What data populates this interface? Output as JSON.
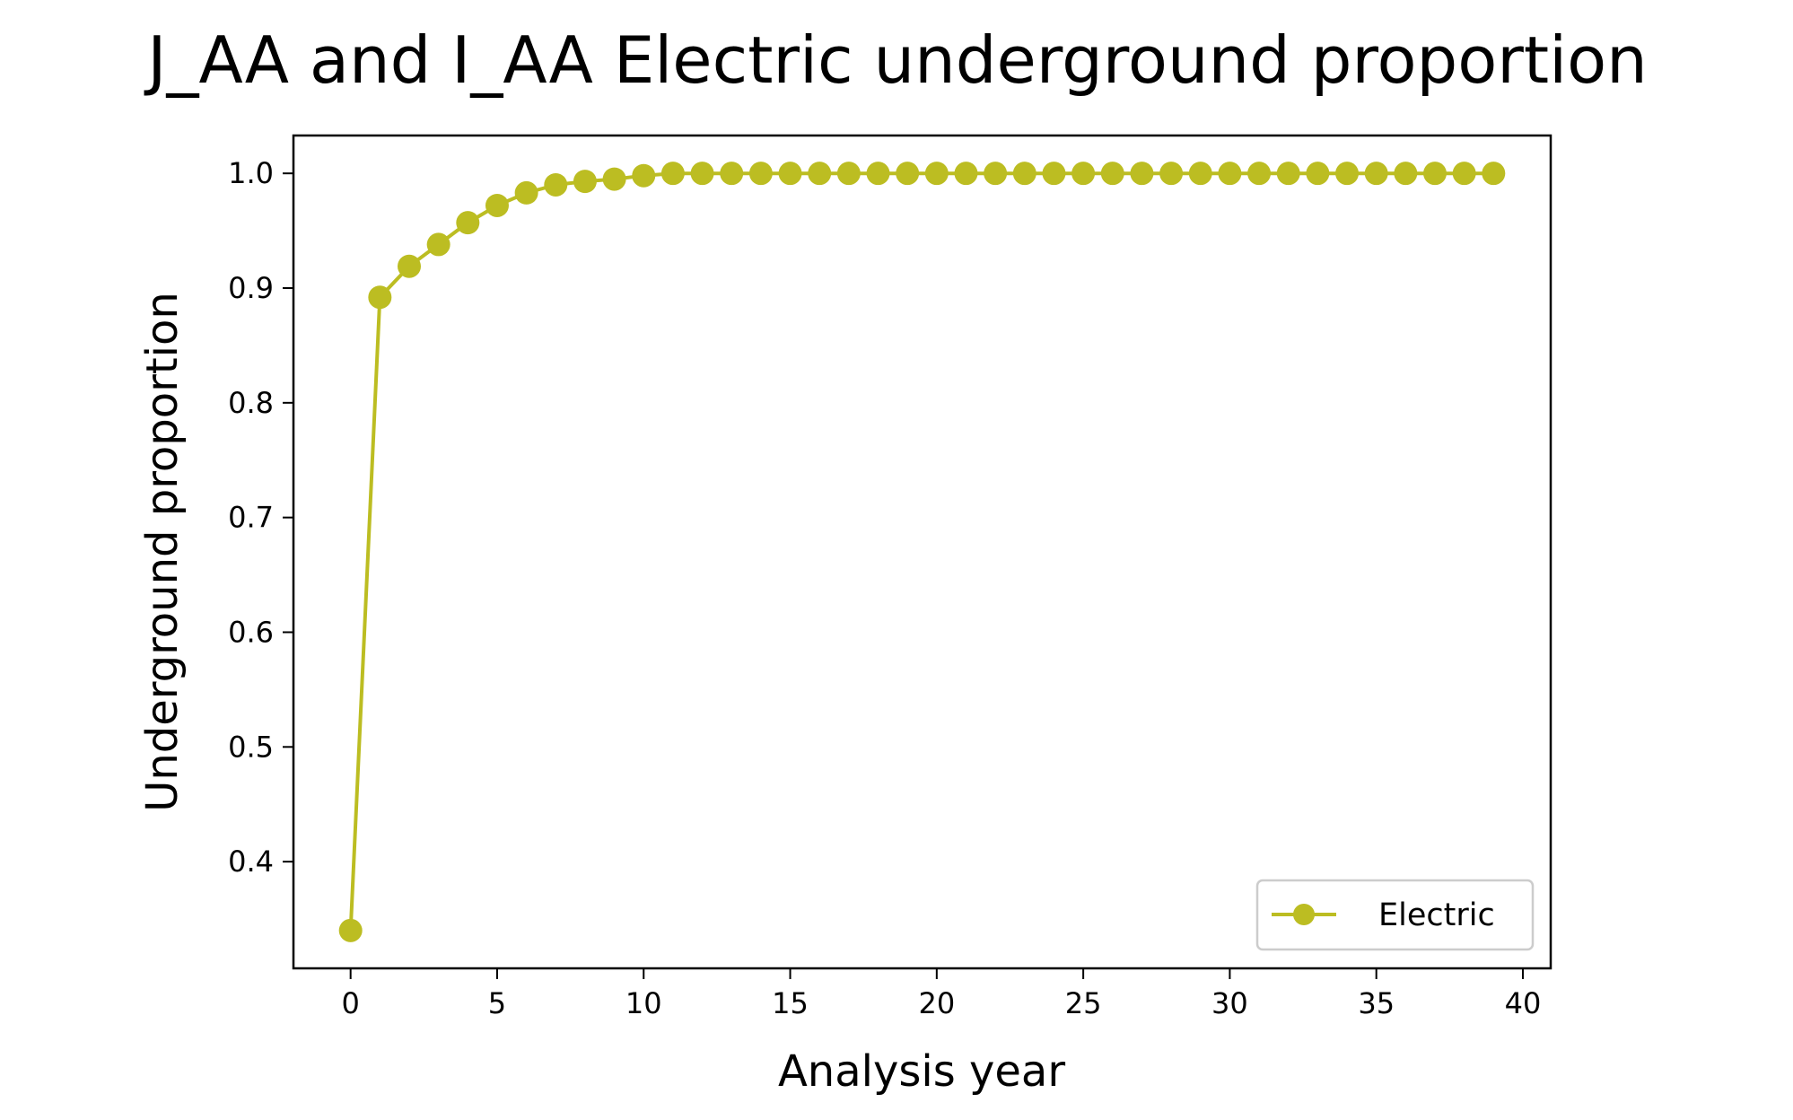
{
  "chart_data": {
    "type": "line",
    "title": "J_AA and I_AA Electric underground proportion",
    "xlabel": "Analysis year",
    "ylabel": "Underground proportion",
    "xlim": [
      -1.95,
      40.95
    ],
    "ylim": [
      0.307,
      1.033
    ],
    "xticks": [
      0,
      5,
      10,
      15,
      20,
      25,
      30,
      35,
      40
    ],
    "xtick_labels": [
      "0",
      "5",
      "10",
      "15",
      "20",
      "25",
      "30",
      "35",
      "40"
    ],
    "yticks": [
      0.4,
      0.5,
      0.6,
      0.7,
      0.8,
      0.9,
      1.0
    ],
    "ytick_labels": [
      "0.4",
      "0.5",
      "0.6",
      "0.7",
      "0.8",
      "0.9",
      "1.0"
    ],
    "grid": false,
    "legend_position": "lower-right",
    "series": [
      {
        "name": "Electric",
        "color": "#bcbd22",
        "marker": "circle",
        "x": [
          0,
          1,
          2,
          3,
          4,
          5,
          6,
          7,
          8,
          9,
          10,
          11,
          12,
          13,
          14,
          15,
          16,
          17,
          18,
          19,
          20,
          21,
          22,
          23,
          24,
          25,
          26,
          27,
          28,
          29,
          30,
          31,
          32,
          33,
          34,
          35,
          36,
          37,
          38,
          39
        ],
        "y": [
          0.34,
          0.892,
          0.919,
          0.938,
          0.957,
          0.972,
          0.983,
          0.99,
          0.993,
          0.995,
          0.998,
          1.0,
          1.0,
          1.0,
          1.0,
          1.0,
          1.0,
          1.0,
          1.0,
          1.0,
          1.0,
          1.0,
          1.0,
          1.0,
          1.0,
          1.0,
          1.0,
          1.0,
          1.0,
          1.0,
          1.0,
          1.0,
          1.0,
          1.0,
          1.0,
          1.0,
          1.0,
          1.0,
          1.0,
          1.0
        ]
      }
    ]
  }
}
